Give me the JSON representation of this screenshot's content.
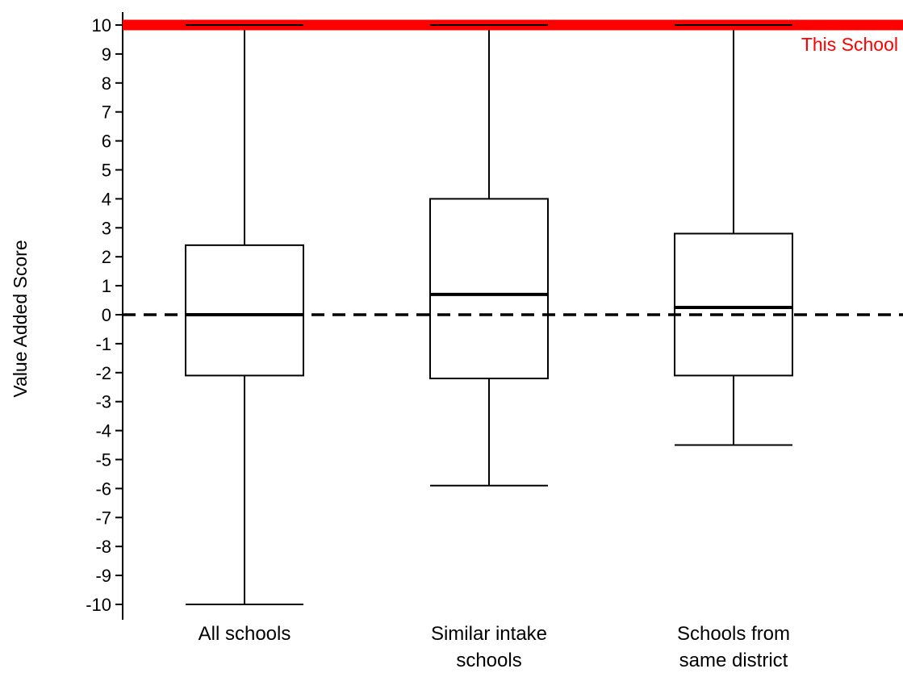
{
  "chart_data": {
    "type": "boxplot",
    "title": "",
    "xlabel": "",
    "ylabel": "Value Added Score",
    "ylim": [
      -10,
      10
    ],
    "yticks": [
      10,
      9,
      8,
      7,
      6,
      5,
      4,
      3,
      2,
      1,
      0,
      -1,
      -2,
      -3,
      -4,
      -5,
      -6,
      -7,
      -8,
      -9,
      -10
    ],
    "reference_line": {
      "value": 0,
      "style": "dashed",
      "color": "#000000"
    },
    "highlight": {
      "label": "This School",
      "value": 10,
      "color": "#ff0000"
    },
    "categories": [
      [
        "All schools"
      ],
      [
        "Similar intake",
        "schools"
      ],
      [
        "Schools from",
        "same district"
      ]
    ],
    "boxes": [
      {
        "whisker_low": -10,
        "q1": -2.1,
        "median": 0,
        "q3": 2.4,
        "whisker_high": 10
      },
      {
        "whisker_low": -5.9,
        "q1": -2.2,
        "median": 0.7,
        "q3": 4.0,
        "whisker_high": 10
      },
      {
        "whisker_low": -4.5,
        "q1": -2.1,
        "median": 0.25,
        "q3": 2.8,
        "whisker_high": 10
      }
    ],
    "grid": false,
    "legend": "none"
  }
}
